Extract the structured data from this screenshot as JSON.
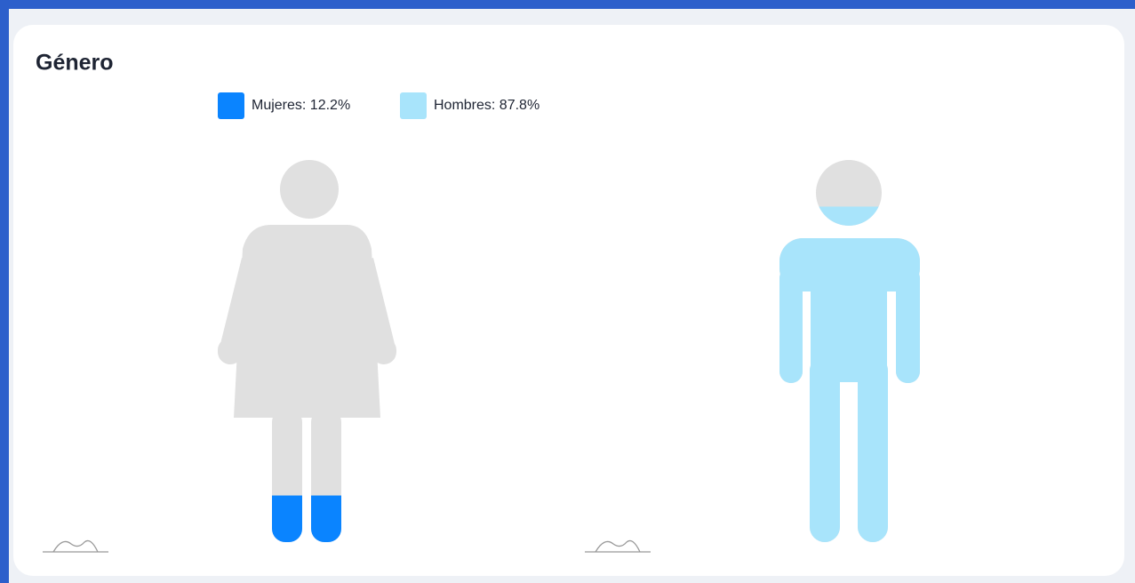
{
  "chart_data": {
    "type": "pictograph",
    "title": "Género",
    "values": [
      12.2,
      87.8
    ],
    "value_labels": [
      "Mujeres: 12.2%",
      "Hombres: 87.8%"
    ],
    "colors": [
      "#0a84ff",
      "#a8e4fb"
    ],
    "base_color": "#e0e0e0"
  }
}
